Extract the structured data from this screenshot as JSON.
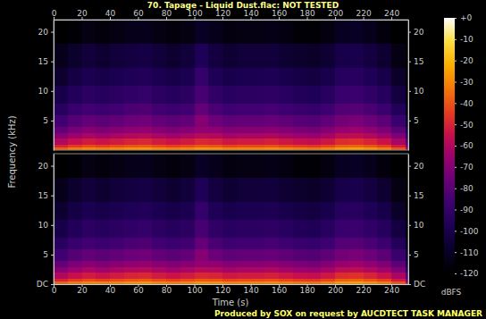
{
  "chart_data": {
    "type": "heatmap",
    "title": "70. Tapage - Liquid Dust.flac: NOT TESTED",
    "x_label": "Time (s)",
    "y_label": "Frequency (kHz)",
    "annotation": "Produced by SOX on request by AUCDTECT TASK MANAGER",
    "xlim": [
      0,
      252
    ],
    "xticks": [
      0,
      20,
      40,
      60,
      80,
      100,
      120,
      140,
      160,
      180,
      200,
      220,
      240
    ],
    "ylim": [
      0,
      22.05
    ],
    "time_edges": [
      0,
      10,
      20,
      30,
      40,
      50,
      60,
      70,
      80,
      90,
      100,
      110,
      120,
      130,
      140,
      150,
      160,
      170,
      180,
      190,
      200,
      210,
      220,
      230,
      240,
      250,
      252
    ],
    "freq_edges": [
      0,
      0.5,
      1,
      2,
      3,
      4,
      6,
      8,
      11,
      14,
      18,
      22.05
    ],
    "panels": [
      {
        "yticks": [
          5,
          10,
          15,
          20
        ],
        "values": [
          [
            -38,
            -33,
            -30,
            -32,
            -30,
            -28,
            -27,
            -30,
            -32,
            -30,
            -27,
            -28,
            -31,
            -30,
            -30,
            -29,
            -31,
            -33,
            -34,
            -31,
            -26,
            -25,
            -28,
            -32,
            -40,
            -60
          ],
          [
            -50,
            -45,
            -42,
            -44,
            -42,
            -40,
            -39,
            -42,
            -44,
            -42,
            -39,
            -40,
            -43,
            -42,
            -42,
            -41,
            -43,
            -45,
            -46,
            -43,
            -38,
            -37,
            -40,
            -44,
            -52,
            -72
          ],
          [
            -60,
            -55,
            -52,
            -54,
            -52,
            -50,
            -49,
            -52,
            -54,
            -52,
            -49,
            -50,
            -53,
            -52,
            -52,
            -51,
            -53,
            -55,
            -56,
            -53,
            -48,
            -47,
            -50,
            -54,
            -62,
            -82
          ],
          [
            -70,
            -65,
            -62,
            -64,
            -62,
            -60,
            -59,
            -62,
            -64,
            -62,
            -59,
            -60,
            -63,
            -62,
            -62,
            -61,
            -63,
            -65,
            -66,
            -63,
            -58,
            -57,
            -60,
            -64,
            -72,
            -92
          ],
          [
            -78,
            -73,
            -70,
            -72,
            -70,
            -68,
            -67,
            -70,
            -72,
            -70,
            -67,
            -68,
            -71,
            -70,
            -70,
            -69,
            -71,
            -73,
            -74,
            -71,
            -66,
            -65,
            -68,
            -72,
            -80,
            -100
          ],
          [
            -86,
            -81,
            -78,
            -80,
            -78,
            -76,
            -75,
            -78,
            -80,
            -78,
            -70,
            -76,
            -79,
            -78,
            -78,
            -77,
            -79,
            -81,
            -82,
            -79,
            -74,
            -73,
            -76,
            -80,
            -88,
            -108
          ],
          [
            -94,
            -89,
            -86,
            -88,
            -86,
            -84,
            -83,
            -86,
            -88,
            -86,
            -78,
            -84,
            -87,
            -86,
            -86,
            -85,
            -87,
            -89,
            -90,
            -87,
            -82,
            -81,
            -84,
            -88,
            -96,
            -115
          ],
          [
            -101,
            -96,
            -93,
            -95,
            -93,
            -91,
            -90,
            -93,
            -95,
            -93,
            -85,
            -91,
            -94,
            -93,
            -93,
            -92,
            -94,
            -96,
            -97,
            -94,
            -89,
            -88,
            -91,
            -95,
            -103,
            -118
          ],
          [
            -107,
            -102,
            -99,
            -101,
            -99,
            -97,
            -96,
            -99,
            -101,
            -99,
            -90,
            -97,
            -100,
            -99,
            -99,
            -98,
            -100,
            -102,
            -103,
            -100,
            -95,
            -94,
            -97,
            -101,
            -109,
            -120
          ],
          [
            -113,
            -108,
            -105,
            -107,
            -105,
            -103,
            -102,
            -105,
            -107,
            -105,
            -97,
            -103,
            -106,
            -105,
            -105,
            -104,
            -106,
            -108,
            -109,
            -106,
            -101,
            -100,
            -103,
            -107,
            -115,
            -120
          ],
          [
            -120,
            -118,
            -115,
            -117,
            -115,
            -113,
            -112,
            -115,
            -117,
            -115,
            -110,
            -113,
            -116,
            -115,
            -115,
            -114,
            -116,
            -118,
            -119,
            -116,
            -111,
            -110,
            -113,
            -117,
            -120,
            -120
          ]
        ]
      },
      {
        "yticks": [
          {
            "value": 0,
            "label": "DC"
          },
          5,
          10,
          15,
          20
        ],
        "values": [
          [
            -37,
            -33,
            -30,
            -31,
            -30,
            -28,
            -27,
            -30,
            -32,
            -30,
            -27,
            -28,
            -31,
            -30,
            -30,
            -29,
            -31,
            -33,
            -34,
            -31,
            -26,
            -25,
            -28,
            -32,
            -40,
            -60
          ],
          [
            -50,
            -45,
            -42,
            -44,
            -42,
            -40,
            -39,
            -42,
            -44,
            -42,
            -39,
            -40,
            -43,
            -42,
            -42,
            -41,
            -43,
            -45,
            -46,
            -43,
            -38,
            -37,
            -40,
            -44,
            -52,
            -72
          ],
          [
            -60,
            -55,
            -52,
            -54,
            -52,
            -50,
            -49,
            -52,
            -54,
            -52,
            -49,
            -50,
            -53,
            -52,
            -52,
            -51,
            -53,
            -55,
            -56,
            -53,
            -48,
            -47,
            -50,
            -54,
            -62,
            -82
          ],
          [
            -70,
            -65,
            -62,
            -64,
            -62,
            -60,
            -59,
            -62,
            -64,
            -62,
            -59,
            -60,
            -63,
            -62,
            -62,
            -61,
            -63,
            -65,
            -66,
            -63,
            -58,
            -57,
            -60,
            -64,
            -72,
            -92
          ],
          [
            -78,
            -73,
            -70,
            -72,
            -70,
            -68,
            -67,
            -70,
            -72,
            -70,
            -67,
            -68,
            -71,
            -70,
            -70,
            -69,
            -71,
            -73,
            -74,
            -71,
            -66,
            -65,
            -68,
            -72,
            -80,
            -100
          ],
          [
            -86,
            -81,
            -78,
            -80,
            -78,
            -76,
            -75,
            -78,
            -80,
            -78,
            -70,
            -76,
            -79,
            -78,
            -78,
            -77,
            -79,
            -81,
            -82,
            -79,
            -74,
            -73,
            -76,
            -80,
            -88,
            -108
          ],
          [
            -94,
            -89,
            -86,
            -88,
            -86,
            -84,
            -83,
            -86,
            -88,
            -86,
            -78,
            -84,
            -87,
            -86,
            -86,
            -85,
            -87,
            -89,
            -90,
            -87,
            -82,
            -81,
            -84,
            -88,
            -96,
            -115
          ],
          [
            -101,
            -96,
            -93,
            -95,
            -93,
            -91,
            -90,
            -93,
            -95,
            -93,
            -85,
            -91,
            -94,
            -93,
            -93,
            -92,
            -94,
            -96,
            -97,
            -94,
            -89,
            -88,
            -91,
            -95,
            -103,
            -118
          ],
          [
            -107,
            -102,
            -99,
            -101,
            -99,
            -97,
            -96,
            -99,
            -101,
            -99,
            -90,
            -97,
            -100,
            -99,
            -99,
            -98,
            -100,
            -102,
            -103,
            -100,
            -95,
            -94,
            -97,
            -101,
            -109,
            -120
          ],
          [
            -113,
            -108,
            -105,
            -107,
            -105,
            -103,
            -102,
            -105,
            -107,
            -105,
            -97,
            -103,
            -106,
            -105,
            -105,
            -104,
            -106,
            -108,
            -109,
            -106,
            -101,
            -100,
            -103,
            -107,
            -115,
            -120
          ],
          [
            -120,
            -118,
            -115,
            -117,
            -115,
            -113,
            -112,
            -115,
            -117,
            -115,
            -110,
            -113,
            -116,
            -115,
            -115,
            -114,
            -116,
            -118,
            -119,
            -116,
            -111,
            -110,
            -113,
            -117,
            -120,
            -120
          ]
        ]
      }
    ],
    "colorbar": {
      "label": "dBFS",
      "range": [
        -120,
        0
      ],
      "ticks": [
        {
          "value": 0,
          "label": "+0"
        },
        -10,
        -20,
        -30,
        -40,
        -50,
        -60,
        -70,
        -80,
        -90,
        -100,
        -110,
        -120
      ]
    }
  }
}
